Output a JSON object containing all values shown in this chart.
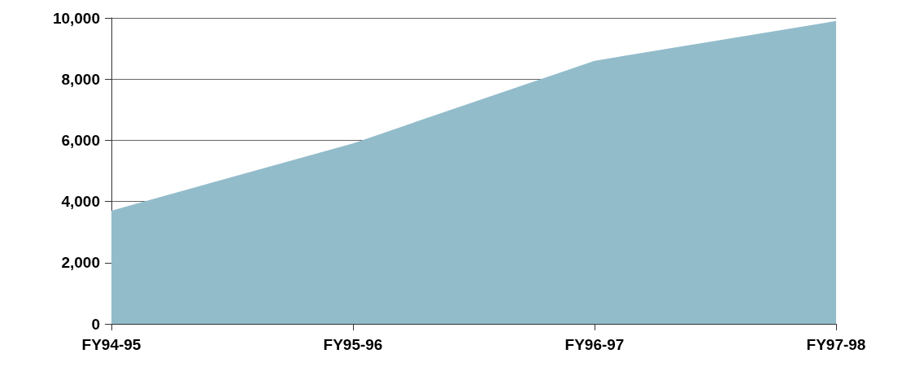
{
  "chart_data": {
    "type": "area",
    "categories": [
      "FY94-95",
      "FY95-96",
      "FY96-97",
      "FY97-98"
    ],
    "series": [
      {
        "color": "#93bccb",
        "values": [
          3700,
          5900,
          8600,
          9900
        ]
      }
    ],
    "ylim": [
      0,
      10000
    ],
    "yticks": [
      {
        "value": 0,
        "label": "0"
      },
      {
        "value": 2000,
        "label": "2,000"
      },
      {
        "value": 4000,
        "label": "4,000"
      },
      {
        "value": 6000,
        "label": "6,000"
      },
      {
        "value": 8000,
        "label": "8,000"
      },
      {
        "value": 10000,
        "label": "10,000"
      }
    ],
    "grid": "y"
  }
}
